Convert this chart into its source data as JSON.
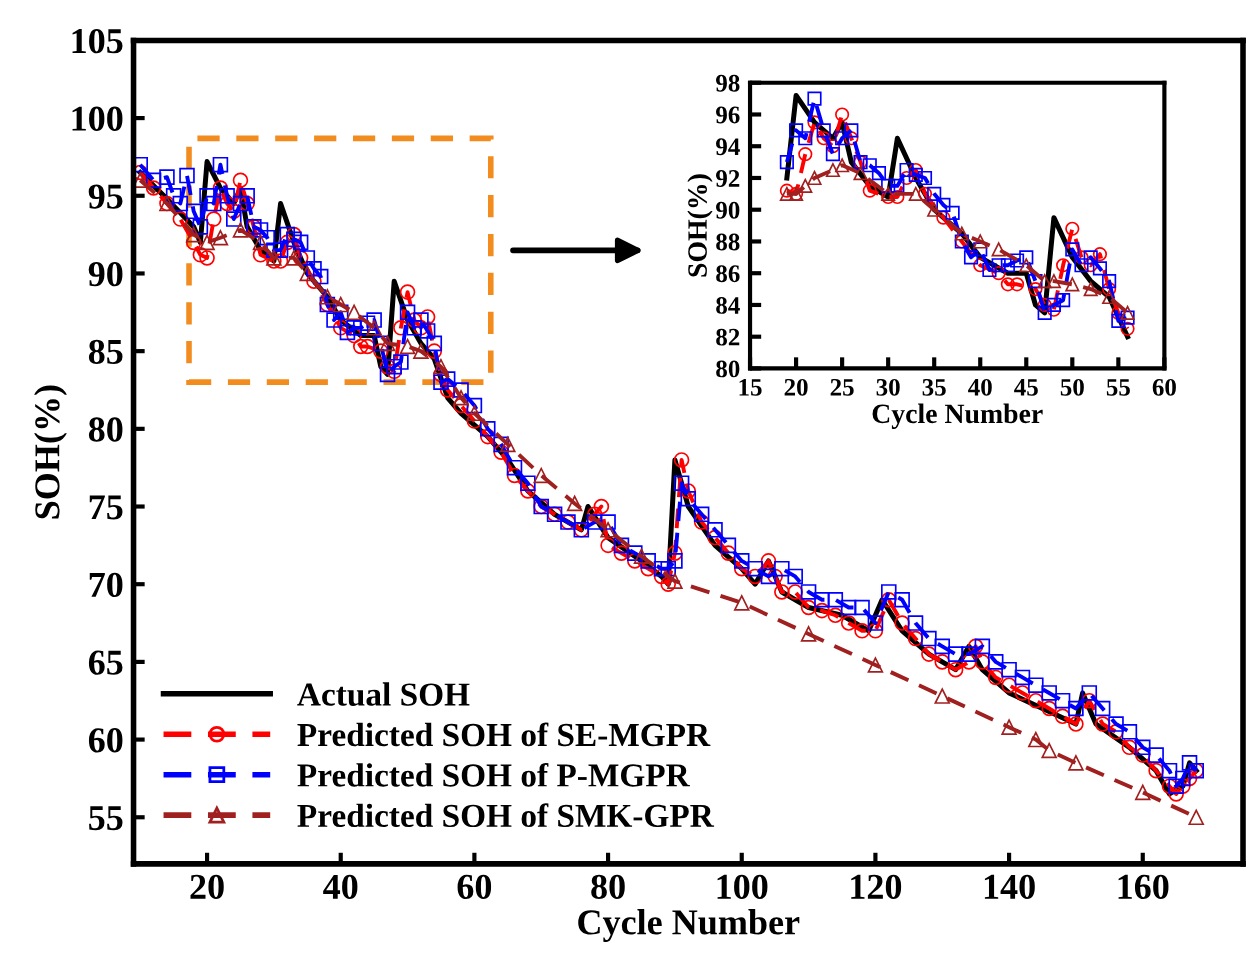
{
  "chart_data": [
    {
      "type": "line",
      "xlabel": "Cycle Number",
      "ylabel": "SOH(%)",
      "xlim": [
        9,
        175
      ],
      "ylim": [
        52,
        105
      ],
      "xticks": [
        20,
        40,
        60,
        80,
        100,
        120,
        140,
        160
      ],
      "yticks": [
        55,
        60,
        65,
        70,
        75,
        80,
        85,
        90,
        95,
        100,
        105
      ],
      "grid": false,
      "legend": "bottom left",
      "series": [
        {
          "name": "Actual SOH",
          "color": "#000000",
          "marker": "none",
          "line_style": "solid",
          "x": [
            10,
            14,
            18,
            19,
            20,
            22,
            24,
            25,
            26,
            28,
            30,
            31,
            33,
            35,
            38,
            40,
            43,
            45,
            46,
            47,
            48,
            50,
            52,
            54,
            56,
            58,
            62,
            65,
            68,
            72,
            76,
            77,
            80,
            85,
            88,
            89,
            90,
            92,
            96,
            100,
            102,
            104,
            106,
            110,
            115,
            119,
            121,
            124,
            128,
            132,
            134,
            136,
            140,
            145,
            150,
            151,
            153,
            158,
            162,
            164,
            166,
            167,
            168
          ],
          "values": [
            96.5,
            94.8,
            93,
            92,
            97.2,
            95.5,
            94.5,
            95.5,
            93,
            91.5,
            90.8,
            94.5,
            92,
            90,
            88.5,
            87,
            86,
            86,
            84,
            83.5,
            89.5,
            87,
            85.5,
            84.5,
            82,
            81,
            79.5,
            78,
            76,
            74.5,
            73.5,
            75,
            73,
            71.5,
            70.5,
            70,
            78,
            75,
            72.5,
            71,
            70,
            71.5,
            69.5,
            68.5,
            68,
            67,
            69,
            67,
            65.5,
            64.5,
            66,
            64.5,
            63,
            62,
            61,
            63,
            61,
            59.5,
            58,
            56.5,
            57,
            58.5,
            58
          ]
        },
        {
          "name": "Predicted SOH of SE-MGPR",
          "color": "#ff0000",
          "marker": "circle",
          "line_style": "dashed",
          "x": [
            10,
            12,
            14,
            16,
            18,
            19,
            20,
            21,
            22,
            23,
            24,
            25,
            26,
            27,
            28,
            30,
            31,
            32,
            33,
            34,
            36,
            38,
            40,
            42,
            43,
            44,
            46,
            47,
            48,
            49,
            50,
            51,
            52,
            53,
            54,
            55,
            56,
            58,
            60,
            62,
            64,
            66,
            68,
            70,
            72,
            74,
            76,
            78,
            79,
            80,
            82,
            84,
            86,
            88,
            89,
            90,
            91,
            92,
            94,
            96,
            98,
            100,
            102,
            104,
            105,
            106,
            108,
            110,
            112,
            114,
            116,
            118,
            120,
            122,
            124,
            126,
            128,
            130,
            132,
            134,
            135,
            136,
            138,
            140,
            142,
            144,
            146,
            148,
            150,
            152,
            154,
            156,
            158,
            160,
            162,
            164,
            165,
            166,
            167,
            168
          ],
          "values": [
            96.5,
            95.5,
            94.5,
            93.5,
            92,
            91.2,
            91,
            93.5,
            95.5,
            94.5,
            94,
            96,
            94.5,
            93,
            91.2,
            90.8,
            90.8,
            92,
            92.5,
            91,
            89.5,
            88,
            86.5,
            86,
            85.3,
            85.3,
            85,
            84,
            83.7,
            86.5,
            88.8,
            87,
            86.5,
            87.2,
            85,
            83.5,
            82.5,
            81.5,
            80.5,
            79.5,
            78.5,
            77,
            76,
            75,
            74.5,
            74,
            73.5,
            74.5,
            75,
            72.5,
            72,
            71.5,
            71,
            70.5,
            70,
            72,
            78,
            76,
            74,
            73,
            72,
            71,
            70.5,
            71.5,
            70.5,
            69.5,
            69.5,
            68.5,
            68.3,
            68,
            67.5,
            67,
            67,
            69,
            67.5,
            66.5,
            65.5,
            65,
            64.5,
            65,
            66,
            65,
            64,
            63.5,
            63,
            62.5,
            62,
            61.5,
            61,
            62.5,
            61,
            60.5,
            59.5,
            59,
            58,
            57,
            56.5,
            57,
            57.5,
            58
          ]
        },
        {
          "name": "Predicted SOH of P-MGPR",
          "color": "#0000ff",
          "marker": "square",
          "line_style": "dashed",
          "x": [
            10,
            12,
            14,
            15,
            16,
            17,
            18,
            19,
            20,
            21,
            22,
            23,
            24,
            25,
            26,
            27,
            28,
            29,
            30,
            31,
            32,
            33,
            34,
            35,
            36,
            37,
            38,
            39,
            40,
            41,
            42,
            43,
            44,
            45,
            46,
            47,
            48,
            49,
            50,
            51,
            52,
            53,
            54,
            55,
            56,
            58,
            60,
            62,
            64,
            66,
            68,
            70,
            72,
            74,
            76,
            78,
            80,
            82,
            84,
            86,
            88,
            89,
            90,
            91,
            92,
            94,
            96,
            98,
            100,
            102,
            104,
            106,
            108,
            110,
            112,
            114,
            116,
            118,
            120,
            122,
            124,
            126,
            128,
            130,
            132,
            134,
            136,
            138,
            140,
            142,
            144,
            146,
            148,
            150,
            152,
            154,
            156,
            158,
            160,
            162,
            164,
            165,
            166,
            167,
            168
          ],
          "values": [
            97,
            96,
            96.2,
            95,
            94.5,
            96.3,
            94,
            93,
            95,
            94.5,
            97,
            95,
            93.5,
            94.5,
            95,
            93,
            92.8,
            92.3,
            91.5,
            91.5,
            92.5,
            92.2,
            92,
            91,
            90.3,
            89.8,
            88,
            87,
            87.5,
            86.2,
            86.5,
            86.5,
            86.8,
            87,
            85.5,
            83.5,
            84,
            84.3,
            87.5,
            86.5,
            87,
            86.3,
            85.5,
            83,
            83.2,
            82.5,
            81.5,
            80,
            79,
            77.5,
            76.5,
            75,
            74.5,
            74,
            73.5,
            74,
            74,
            72.5,
            72,
            71.5,
            71,
            71,
            71.5,
            76.5,
            75.5,
            74.5,
            73.5,
            72.5,
            71.5,
            71,
            70.5,
            71,
            70.5,
            69.5,
            69,
            69,
            68.5,
            68.5,
            67.5,
            69.5,
            69,
            67.5,
            66.5,
            66,
            65.5,
            65.5,
            66,
            65,
            64.5,
            64,
            63.5,
            63,
            62.5,
            62,
            63,
            62,
            61,
            60.5,
            59.5,
            59,
            58,
            57,
            57.5,
            58.5,
            58
          ]
        },
        {
          "name": "Predicted SOH of SMK-GPR",
          "color": "#a02020",
          "marker": "triangle",
          "line_style": "dashed",
          "x": [
            10,
            14,
            18,
            20,
            22,
            25,
            28,
            30,
            33,
            35,
            38,
            40,
            42,
            45,
            47,
            50,
            52,
            55,
            58,
            60,
            65,
            70,
            75,
            80,
            85,
            90,
            100,
            110,
            120,
            130,
            140,
            144,
            146,
            150,
            160,
            168
          ],
          "values": [
            96,
            94.5,
            92.5,
            92,
            92.3,
            92.8,
            92,
            91,
            91,
            90,
            88.5,
            88,
            87.5,
            86.5,
            85.5,
            85.3,
            85,
            84,
            82,
            81,
            79,
            77,
            75.2,
            73.5,
            71.8,
            70.2,
            68.8,
            66.8,
            64.8,
            62.8,
            60.8,
            60,
            59.3,
            58.5,
            56.6,
            55
          ]
        }
      ]
    },
    {
      "type": "line",
      "xlabel": "Cycle Number",
      "ylabel": "SOH(%)",
      "xlim": [
        15,
        60
      ],
      "ylim": [
        80,
        98
      ],
      "xticks": [
        15,
        20,
        25,
        30,
        35,
        40,
        45,
        50,
        55,
        60
      ],
      "yticks": [
        80,
        82,
        84,
        86,
        88,
        90,
        92,
        94,
        96,
        98
      ],
      "grid": false,
      "legend": false,
      "series": [
        {
          "color": "#000000",
          "marker": "none",
          "line_style": "solid",
          "x": [
            19,
            20,
            22,
            24,
            25,
            26,
            28,
            30,
            31,
            33,
            35,
            38,
            40,
            43,
            45,
            46,
            47,
            48,
            50,
            52,
            54,
            56
          ],
          "values": [
            92,
            97.2,
            95.5,
            94.5,
            95.5,
            93,
            91.5,
            90.8,
            94.5,
            92,
            90,
            88.5,
            87,
            86,
            86,
            84,
            83.5,
            89.5,
            87,
            85.5,
            84.5,
            82
          ]
        },
        {
          "color": "#ff0000",
          "marker": "circle",
          "line_style": "dashed",
          "x": [
            19,
            20,
            21,
            22,
            23,
            24,
            25,
            26,
            27,
            28,
            30,
            31,
            32,
            33,
            34,
            36,
            38,
            40,
            42,
            43,
            44,
            46,
            47,
            48,
            49,
            50,
            51,
            52,
            53,
            54,
            55,
            56
          ],
          "values": [
            91.2,
            91,
            93.5,
            95.5,
            94.5,
            94,
            96,
            94.5,
            93,
            91.2,
            90.8,
            90.8,
            92,
            92.5,
            91,
            89.5,
            88,
            86.5,
            86,
            85.3,
            85.3,
            85,
            84,
            83.7,
            86.5,
            88.8,
            87,
            86.5,
            87.2,
            85,
            83.5,
            82.5
          ]
        },
        {
          "color": "#0000ff",
          "marker": "square",
          "line_style": "dashed",
          "x": [
            19,
            20,
            21,
            22,
            23,
            24,
            25,
            26,
            27,
            28,
            29,
            30,
            31,
            32,
            33,
            34,
            35,
            36,
            37,
            38,
            39,
            40,
            41,
            42,
            43,
            44,
            45,
            46,
            47,
            48,
            49,
            50,
            51,
            52,
            53,
            54,
            55,
            56
          ],
          "values": [
            93,
            95,
            94.5,
            97,
            95,
            93.5,
            94.5,
            95,
            93,
            92.8,
            92.3,
            91.5,
            91.5,
            92.5,
            92.2,
            92,
            91,
            90.3,
            89.8,
            88,
            87,
            87.5,
            86.2,
            86.5,
            86.5,
            86.8,
            87,
            85.5,
            83.5,
            84,
            84.3,
            87.5,
            86.5,
            87,
            86.3,
            85.5,
            83,
            83.2
          ]
        },
        {
          "color": "#a02020",
          "marker": "triangle",
          "line_style": "dashed",
          "x": [
            19,
            20,
            21,
            22,
            24,
            25,
            27,
            30,
            33,
            35,
            38,
            40,
            42,
            45,
            47,
            48,
            50,
            52,
            54,
            56
          ],
          "values": [
            91,
            91,
            91.5,
            92,
            92.5,
            92.8,
            92.3,
            91,
            91,
            90,
            88.5,
            88,
            87.5,
            86.5,
            85.5,
            85.5,
            85.3,
            85,
            84.5,
            83.5
          ]
        }
      ]
    }
  ]
}
